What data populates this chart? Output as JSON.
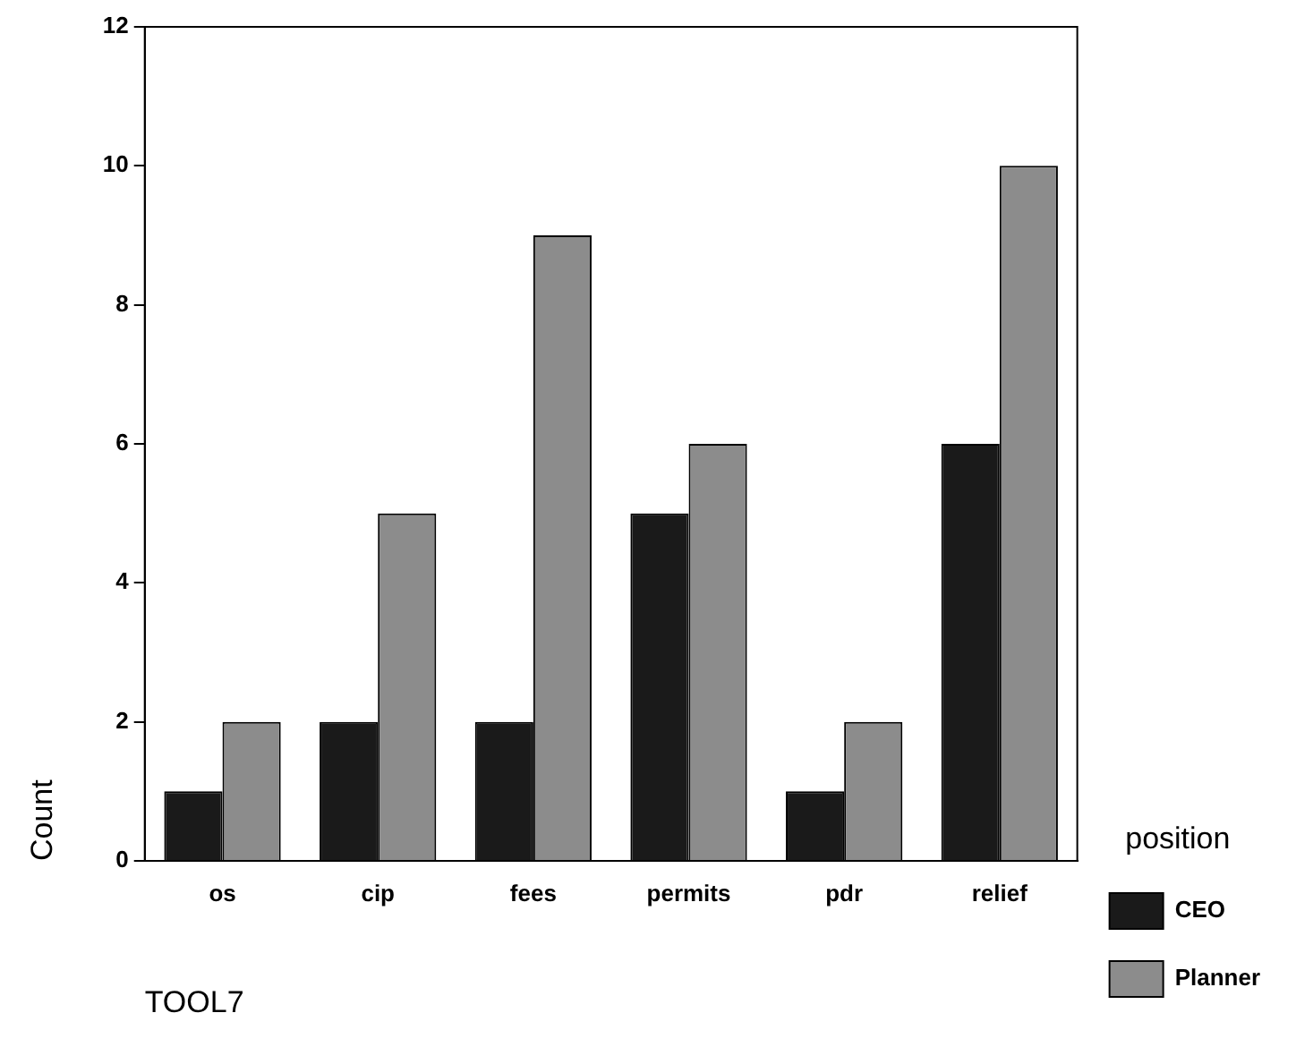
{
  "chart_data": {
    "type": "bar",
    "xlabel": "TOOL7",
    "ylabel": "Count",
    "legend_title": "position",
    "categories": [
      "os",
      "cip",
      "fees",
      "permits",
      "pdr",
      "relief"
    ],
    "series": [
      {
        "name": "CEO",
        "color": "#1a1a1a",
        "values": [
          1,
          2,
          2,
          5,
          1,
          6
        ]
      },
      {
        "name": "Planner",
        "color": "#8c8c8c",
        "values": [
          2,
          5,
          9,
          6,
          2,
          10
        ]
      }
    ],
    "ylim": [
      0,
      12
    ],
    "yticks": [
      0,
      2,
      4,
      6,
      8,
      10,
      12
    ],
    "grid": false,
    "legend": "right"
  }
}
